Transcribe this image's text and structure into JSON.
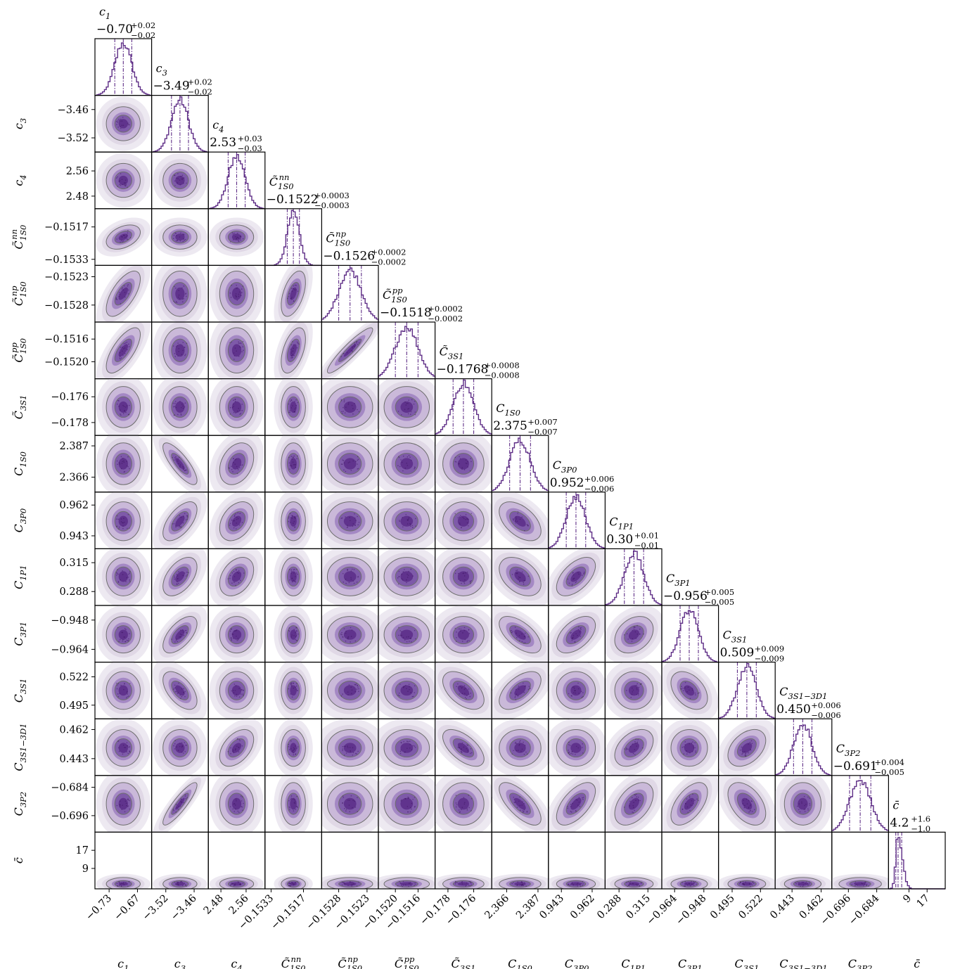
{
  "chart_data": {
    "type": "corner",
    "description_type": "triangular corner plot of marginal posterior histograms and 2D density contours",
    "color": "#5e2d86",
    "contour_color": "#6e6e6e",
    "parameters": [
      {
        "label": "c_1",
        "median": "−0.70",
        "plus": "+0.02",
        "minus": "−0.02",
        "center": -0.7,
        "sigma": 0.018,
        "ticks": [
          "−0.73",
          "−0.67"
        ],
        "tick_values": [
          -0.73,
          -0.67
        ],
        "range": [
          -0.76,
          -0.64
        ]
      },
      {
        "label": "c_3",
        "median": "−3.49",
        "plus": "+0.02",
        "minus": "−0.02",
        "center": -3.49,
        "sigma": 0.018,
        "ticks": [
          "−3.52",
          "−3.46"
        ],
        "tick_values": [
          -3.52,
          -3.46
        ],
        "range": [
          -3.55,
          -3.43
        ]
      },
      {
        "label": "c_4",
        "median": "2.53",
        "plus": "+0.03",
        "minus": "−0.03",
        "center": 2.53,
        "sigma": 0.027,
        "ticks": [
          "2.48",
          "2.56"
        ],
        "tick_values": [
          2.48,
          2.56
        ],
        "range": [
          2.44,
          2.62
        ]
      },
      {
        "label": "C̃_1S0^nn",
        "median": "−0.1522",
        "plus": "+0.0003",
        "minus": "−0.0003",
        "center": -0.1522,
        "sigma": 0.0003,
        "ticks": [
          "−0.1533",
          "−0.1517"
        ],
        "tick_values": [
          -0.1533,
          -0.1517
        ],
        "range": [
          -0.1536,
          -0.1508
        ]
      },
      {
        "label": "C̃_1S0^np",
        "median": "−0.1526",
        "plus": "+0.0002",
        "minus": "−0.0002",
        "center": -0.1526,
        "sigma": 0.0002,
        "ticks": [
          "−0.1528",
          "−0.1523"
        ],
        "tick_values": [
          -0.1528,
          -0.1523
        ],
        "range": [
          -0.1531,
          -0.1521
        ]
      },
      {
        "label": "C̃_1S0^pp",
        "median": "−0.1518",
        "plus": "+0.0002",
        "minus": "−0.0002",
        "center": -0.1518,
        "sigma": 0.0002,
        "ticks": [
          "−0.1520",
          "−0.1516"
        ],
        "tick_values": [
          -0.152,
          -0.1516
        ],
        "range": [
          -0.1523,
          -0.1513
        ]
      },
      {
        "label": "C̃_3S1",
        "median": "−0.1768",
        "plus": "+0.0008",
        "minus": "−0.0008",
        "center": -0.1768,
        "sigma": 0.0008,
        "ticks": [
          "−0.178",
          "−0.176"
        ],
        "tick_values": [
          -0.178,
          -0.176
        ],
        "range": [
          -0.179,
          -0.1746
        ]
      },
      {
        "label": "C_1S0",
        "median": "2.375",
        "plus": "+0.007",
        "minus": "−0.007",
        "center": 2.375,
        "sigma": 0.007,
        "ticks": [
          "2.366",
          "2.387"
        ],
        "tick_values": [
          2.366,
          2.387
        ],
        "range": [
          2.356,
          2.394
        ]
      },
      {
        "label": "C_3P0",
        "median": "0.952",
        "plus": "+0.006",
        "minus": "−0.006",
        "center": 0.952,
        "sigma": 0.006,
        "ticks": [
          "0.943",
          "0.962"
        ],
        "tick_values": [
          0.943,
          0.962
        ],
        "range": [
          0.935,
          0.97
        ]
      },
      {
        "label": "C_1P1",
        "median": "0.30",
        "plus": "+0.01",
        "minus": "−0.01",
        "center": 0.302,
        "sigma": 0.009,
        "ticks": [
          "0.288",
          "0.315"
        ],
        "tick_values": [
          0.288,
          0.315
        ],
        "range": [
          0.275,
          0.328
        ]
      },
      {
        "label": "C_3P1",
        "median": "−0.956",
        "plus": "+0.005",
        "minus": "−0.005",
        "center": -0.956,
        "sigma": 0.005,
        "ticks": [
          "−0.964",
          "−0.948"
        ],
        "tick_values": [
          -0.964,
          -0.948
        ],
        "range": [
          -0.971,
          -0.94
        ]
      },
      {
        "label": "C_3S1",
        "median": "0.509",
        "plus": "+0.009",
        "minus": "−0.009",
        "center": 0.509,
        "sigma": 0.009,
        "ticks": [
          "0.495",
          "0.522"
        ],
        "tick_values": [
          0.495,
          0.522
        ],
        "range": [
          0.482,
          0.536
        ]
      },
      {
        "label": "C_3S1−3D1",
        "median": "0.450",
        "plus": "+0.006",
        "minus": "−0.006",
        "center": 0.45,
        "sigma": 0.006,
        "ticks": [
          "0.443",
          "0.462"
        ],
        "tick_values": [
          0.443,
          0.462
        ],
        "range": [
          0.432,
          0.469
        ]
      },
      {
        "label": "C_3P2",
        "median": "−0.691",
        "plus": "+0.004",
        "minus": "−0.005",
        "center": -0.691,
        "sigma": 0.0045,
        "ticks": [
          "−0.696",
          "−0.684"
        ],
        "tick_values": [
          -0.696,
          -0.684
        ],
        "range": [
          -0.703,
          -0.679
        ]
      },
      {
        "label": "c̄",
        "median": "4.2",
        "plus": "+1.6",
        "minus": "−1.0",
        "center": 4.2,
        "sigma": 1.3,
        "ticks": [
          "9",
          "17"
        ],
        "tick_values": [
          9,
          17
        ],
        "range": [
          0,
          25
        ]
      }
    ],
    "correlations": [
      {
        "i": 3,
        "j": 0,
        "r": 0.4
      },
      {
        "i": 4,
        "j": 0,
        "r": 0.65
      },
      {
        "i": 4,
        "j": 3,
        "r": 0.5
      },
      {
        "i": 5,
        "j": 0,
        "r": 0.7
      },
      {
        "i": 5,
        "j": 3,
        "r": 0.5
      },
      {
        "i": 5,
        "j": 4,
        "r": 0.92
      },
      {
        "i": 7,
        "j": 1,
        "r": -0.8
      },
      {
        "i": 7,
        "j": 2,
        "r": 0.3
      },
      {
        "i": 8,
        "j": 1,
        "r": 0.6
      },
      {
        "i": 8,
        "j": 2,
        "r": 0.35
      },
      {
        "i": 8,
        "j": 7,
        "r": -0.5
      },
      {
        "i": 9,
        "j": 1,
        "r": 0.5
      },
      {
        "i": 9,
        "j": 2,
        "r": 0.35
      },
      {
        "i": 9,
        "j": 7,
        "r": -0.4
      },
      {
        "i": 9,
        "j": 8,
        "r": 0.55
      },
      {
        "i": 10,
        "j": 1,
        "r": 0.6
      },
      {
        "i": 10,
        "j": 7,
        "r": -0.6
      },
      {
        "i": 10,
        "j": 8,
        "r": 0.5
      },
      {
        "i": 10,
        "j": 9,
        "r": 0.3
      },
      {
        "i": 11,
        "j": 1,
        "r": -0.55
      },
      {
        "i": 11,
        "j": 6,
        "r": -0.5
      },
      {
        "i": 11,
        "j": 7,
        "r": 0.55
      },
      {
        "i": 11,
        "j": 10,
        "r": -0.4
      },
      {
        "i": 12,
        "j": 2,
        "r": 0.45
      },
      {
        "i": 12,
        "j": 6,
        "r": -0.6
      },
      {
        "i": 12,
        "j": 9,
        "r": 0.4
      },
      {
        "i": 12,
        "j": 11,
        "r": 0.4
      },
      {
        "i": 13,
        "j": 1,
        "r": 0.88
      },
      {
        "i": 13,
        "j": 7,
        "r": -0.7
      },
      {
        "i": 13,
        "j": 8,
        "r": 0.6
      },
      {
        "i": 13,
        "j": 9,
        "r": 0.45
      },
      {
        "i": 13,
        "j": 10,
        "r": 0.55
      },
      {
        "i": 13,
        "j": 11,
        "r": -0.45
      }
    ],
    "quantile_lines": "dash-dot at 16%, 50%, 84%"
  }
}
